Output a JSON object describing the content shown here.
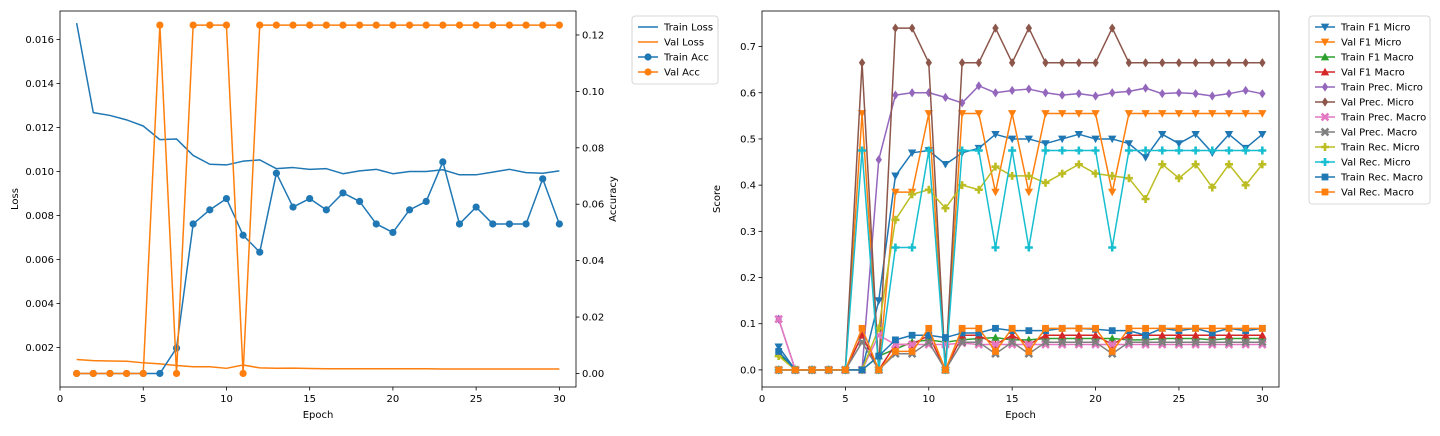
{
  "chart_data": [
    {
      "type": "line",
      "xlabel": "Epoch",
      "ylabel": "Loss",
      "y2label": "Accuracy",
      "xlim": [
        0,
        31
      ],
      "ylim": [
        0.0002,
        0.0173
      ],
      "y2lim": [
        -0.0048,
        0.1285
      ],
      "xticks": [
        0,
        5,
        10,
        15,
        20,
        25,
        30
      ],
      "yticks": [
        0.002,
        0.004,
        0.006,
        0.008,
        0.01,
        0.012,
        0.014,
        0.016
      ],
      "yticklabels": [
        "0.002",
        "0.004",
        "0.006",
        "0.008",
        "0.010",
        "0.012",
        "0.014",
        "0.016"
      ],
      "y2ticks": [
        0.0,
        0.02,
        0.04,
        0.06,
        0.08,
        0.1,
        0.12
      ],
      "y2ticklabels": [
        "0.00",
        "0.02",
        "0.04",
        "0.06",
        "0.08",
        "0.10",
        "0.12"
      ],
      "legend_position": "outside-right",
      "grid": false,
      "x": [
        1,
        2,
        3,
        4,
        5,
        6,
        7,
        8,
        9,
        10,
        11,
        12,
        13,
        14,
        15,
        16,
        17,
        18,
        19,
        20,
        21,
        22,
        23,
        24,
        25,
        26,
        27,
        28,
        29,
        30
      ],
      "series": [
        {
          "name": "Train Loss",
          "axis": "left",
          "color": "#1f77b4",
          "marker": "none",
          "values": [
            0.01675,
            0.01268,
            0.01255,
            0.01235,
            0.01207,
            0.01145,
            0.01148,
            0.01073,
            0.01033,
            0.0103,
            0.01047,
            0.01053,
            0.01013,
            0.01018,
            0.0101,
            0.01013,
            0.0099,
            0.01003,
            0.0101,
            0.0099,
            0.01,
            0.01,
            0.01008,
            0.00985,
            0.00985,
            0.00997,
            0.0101,
            0.00995,
            0.00992,
            0.01003
          ]
        },
        {
          "name": "Val Loss",
          "axis": "left",
          "color": "#ff7f0e",
          "marker": "none",
          "values": [
            0.00145,
            0.0014,
            0.00138,
            0.00137,
            0.0013,
            0.00125,
            0.00118,
            0.00112,
            0.00112,
            0.00105,
            0.0012,
            0.00107,
            0.00105,
            0.00106,
            0.00104,
            0.00103,
            0.00103,
            0.00103,
            0.00103,
            0.00103,
            0.00103,
            0.00103,
            0.00102,
            0.00102,
            0.00102,
            0.00102,
            0.00102,
            0.00102,
            0.00102,
            0.00102
          ]
        },
        {
          "name": "Train Acc",
          "axis": "right",
          "color": "#1f77b4",
          "marker": "circle",
          "values": [
            0.0,
            0.0,
            0.0,
            0.0,
            0.0,
            0.0,
            0.009,
            0.053,
            0.058,
            0.062,
            0.049,
            0.043,
            0.071,
            0.059,
            0.062,
            0.058,
            0.064,
            0.061,
            0.053,
            0.05,
            0.058,
            0.061,
            0.075,
            0.053,
            0.059,
            0.053,
            0.053,
            0.053,
            0.069,
            0.053
          ]
        },
        {
          "name": "Val Acc",
          "axis": "right",
          "color": "#ff7f0e",
          "marker": "circle",
          "values": [
            0.0,
            0.0,
            0.0,
            0.0,
            0.0,
            0.1235,
            0.0,
            0.1235,
            0.1235,
            0.1235,
            0.0,
            0.1235,
            0.1235,
            0.1235,
            0.1235,
            0.1235,
            0.1235,
            0.1235,
            0.1235,
            0.1235,
            0.1235,
            0.1235,
            0.1235,
            0.1235,
            0.1235,
            0.1235,
            0.1235,
            0.1235,
            0.1235,
            0.1235
          ]
        }
      ]
    },
    {
      "type": "line",
      "xlabel": "Epoch",
      "ylabel": "Score",
      "xlim": [
        0,
        31
      ],
      "ylim": [
        -0.037,
        0.777
      ],
      "xticks": [
        0,
        5,
        10,
        15,
        20,
        25,
        30
      ],
      "yticks": [
        0.0,
        0.1,
        0.2,
        0.3,
        0.4,
        0.5,
        0.6,
        0.7
      ],
      "yticklabels": [
        "0.0",
        "0.1",
        "0.2",
        "0.3",
        "0.4",
        "0.5",
        "0.6",
        "0.7"
      ],
      "legend_position": "outside-right",
      "grid": false,
      "x": [
        1,
        2,
        3,
        4,
        5,
        6,
        7,
        8,
        9,
        10,
        11,
        12,
        13,
        14,
        15,
        16,
        17,
        18,
        19,
        20,
        21,
        22,
        23,
        24,
        25,
        26,
        27,
        28,
        29,
        30
      ],
      "series": [
        {
          "name": "Train F1 Micro",
          "color": "#1f77b4",
          "marker": "triangle-down",
          "values": [
            0.05,
            0.0,
            0.0,
            0.0,
            0.0,
            0.0,
            0.15,
            0.42,
            0.47,
            0.475,
            0.445,
            0.47,
            0.48,
            0.51,
            0.5,
            0.5,
            0.49,
            0.5,
            0.51,
            0.5,
            0.5,
            0.49,
            0.46,
            0.51,
            0.49,
            0.51,
            0.47,
            0.51,
            0.48,
            0.51
          ]
        },
        {
          "name": "Val F1 Micro",
          "color": "#ff7f0e",
          "marker": "triangle-down",
          "values": [
            0.0,
            0.0,
            0.0,
            0.0,
            0.0,
            0.555,
            0.0,
            0.385,
            0.385,
            0.555,
            0.0,
            0.555,
            0.555,
            0.385,
            0.555,
            0.385,
            0.555,
            0.555,
            0.555,
            0.555,
            0.385,
            0.555,
            0.555,
            0.555,
            0.555,
            0.555,
            0.555,
            0.555,
            0.555,
            0.555
          ]
        },
        {
          "name": "Train F1 Macro",
          "color": "#2ca02c",
          "marker": "triangle-up",
          "values": [
            0.035,
            0.0,
            0.0,
            0.0,
            0.0,
            0.0,
            0.03,
            0.045,
            0.06,
            0.065,
            0.06,
            0.065,
            0.068,
            0.07,
            0.065,
            0.065,
            0.068,
            0.068,
            0.068,
            0.068,
            0.068,
            0.065,
            0.065,
            0.068,
            0.068,
            0.068,
            0.065,
            0.068,
            0.068,
            0.068
          ]
        },
        {
          "name": "Val F1 Macro",
          "color": "#d62728",
          "marker": "triangle-up",
          "values": [
            0.0,
            0.0,
            0.0,
            0.0,
            0.0,
            0.075,
            0.0,
            0.055,
            0.055,
            0.075,
            0.0,
            0.075,
            0.075,
            0.055,
            0.075,
            0.055,
            0.075,
            0.075,
            0.075,
            0.075,
            0.055,
            0.075,
            0.075,
            0.075,
            0.075,
            0.075,
            0.075,
            0.075,
            0.075,
            0.075
          ]
        },
        {
          "name": "Train Prec. Micro",
          "color": "#9467bd",
          "marker": "diamond",
          "values": [
            0.11,
            0.0,
            0.0,
            0.0,
            0.0,
            0.0,
            0.455,
            0.595,
            0.6,
            0.6,
            0.59,
            0.578,
            0.615,
            0.6,
            0.605,
            0.608,
            0.6,
            0.595,
            0.598,
            0.593,
            0.6,
            0.603,
            0.61,
            0.598,
            0.6,
            0.598,
            0.593,
            0.598,
            0.605,
            0.598
          ]
        },
        {
          "name": "Val Prec. Micro",
          "color": "#8c564b",
          "marker": "diamond",
          "values": [
            0.0,
            0.0,
            0.0,
            0.0,
            0.0,
            0.665,
            0.0,
            0.74,
            0.74,
            0.665,
            0.0,
            0.665,
            0.665,
            0.74,
            0.665,
            0.74,
            0.665,
            0.665,
            0.665,
            0.665,
            0.74,
            0.665,
            0.665,
            0.665,
            0.665,
            0.665,
            0.665,
            0.665,
            0.665,
            0.665
          ]
        },
        {
          "name": "Train Prec. Macro",
          "color": "#e377c2",
          "marker": "x",
          "values": [
            0.11,
            0.0,
            0.0,
            0.0,
            0.0,
            0.0,
            0.075,
            0.055,
            0.055,
            0.055,
            0.055,
            0.058,
            0.055,
            0.055,
            0.055,
            0.055,
            0.055,
            0.055,
            0.055,
            0.055,
            0.055,
            0.055,
            0.055,
            0.055,
            0.055,
            0.055,
            0.055,
            0.055,
            0.055,
            0.055
          ]
        },
        {
          "name": "Val Prec. Macro",
          "color": "#7f7f7f",
          "marker": "x",
          "values": [
            0.0,
            0.0,
            0.0,
            0.0,
            0.0,
            0.06,
            0.0,
            0.035,
            0.035,
            0.06,
            0.0,
            0.06,
            0.06,
            0.035,
            0.06,
            0.035,
            0.06,
            0.06,
            0.06,
            0.06,
            0.035,
            0.06,
            0.06,
            0.06,
            0.06,
            0.06,
            0.06,
            0.06,
            0.06,
            0.06
          ]
        },
        {
          "name": "Train Rec. Micro",
          "color": "#bcbd22",
          "marker": "plus",
          "values": [
            0.03,
            0.0,
            0.0,
            0.0,
            0.0,
            0.0,
            0.09,
            0.325,
            0.38,
            0.39,
            0.35,
            0.4,
            0.39,
            0.44,
            0.42,
            0.42,
            0.405,
            0.425,
            0.445,
            0.425,
            0.42,
            0.415,
            0.37,
            0.445,
            0.415,
            0.445,
            0.395,
            0.445,
            0.4,
            0.445
          ]
        },
        {
          "name": "Val Rec. Micro",
          "color": "#17becf",
          "marker": "plus",
          "values": [
            0.0,
            0.0,
            0.0,
            0.0,
            0.0,
            0.475,
            0.0,
            0.265,
            0.265,
            0.475,
            0.0,
            0.475,
            0.475,
            0.265,
            0.475,
            0.265,
            0.475,
            0.475,
            0.475,
            0.475,
            0.265,
            0.475,
            0.475,
            0.475,
            0.475,
            0.475,
            0.475,
            0.475,
            0.475,
            0.475
          ]
        },
        {
          "name": "Train Rec. Macro",
          "color": "#1f77b4",
          "marker": "square",
          "values": [
            0.04,
            0.0,
            0.0,
            0.0,
            0.0,
            0.0,
            0.03,
            0.065,
            0.075,
            0.075,
            0.07,
            0.08,
            0.08,
            0.09,
            0.085,
            0.085,
            0.085,
            0.09,
            0.09,
            0.088,
            0.085,
            0.085,
            0.075,
            0.09,
            0.085,
            0.09,
            0.08,
            0.09,
            0.085,
            0.09
          ]
        },
        {
          "name": "Val Rec. Macro",
          "color": "#ff7f0e",
          "marker": "square",
          "values": [
            0.0,
            0.0,
            0.0,
            0.0,
            0.0,
            0.09,
            0.0,
            0.04,
            0.04,
            0.09,
            0.0,
            0.09,
            0.09,
            0.04,
            0.09,
            0.04,
            0.09,
            0.09,
            0.09,
            0.09,
            0.04,
            0.09,
            0.09,
            0.09,
            0.09,
            0.09,
            0.09,
            0.09,
            0.09,
            0.09
          ]
        }
      ]
    }
  ]
}
